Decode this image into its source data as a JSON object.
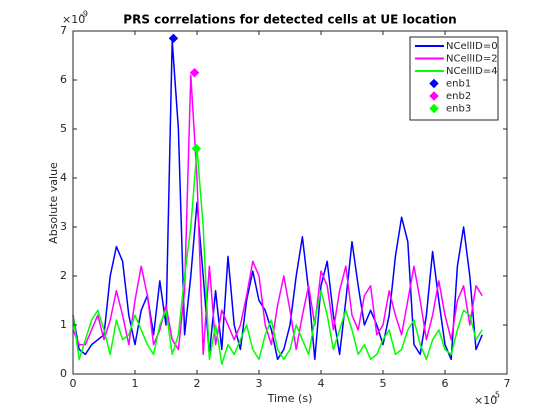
{
  "chart_data": {
    "type": "line",
    "title": "PRS correlations for detected cells at UE location",
    "xlabel": "Time (s)",
    "ylabel": "Absolute value",
    "x_multiplier": {
      "base": "×10",
      "exponent": "-5"
    },
    "y_multiplier": {
      "base": "×10",
      "exponent": "-9"
    },
    "xlim": [
      0,
      7
    ],
    "ylim": [
      0,
      7
    ],
    "xticks": [
      0,
      1,
      2,
      3,
      4,
      5,
      6,
      7
    ],
    "yticks": [
      0,
      1,
      2,
      3,
      4,
      5,
      6,
      7
    ],
    "grid": false,
    "legend": "upper right",
    "x": [
      0,
      0.1,
      0.2,
      0.3,
      0.4,
      0.5,
      0.6,
      0.7,
      0.8,
      0.9,
      1,
      1.1,
      1.2,
      1.3,
      1.4,
      1.5,
      1.6,
      1.7,
      1.8,
      1.9,
      2,
      2.1,
      2.2,
      2.3,
      2.4,
      2.5,
      2.6,
      2.7,
      2.8,
      2.9,
      3,
      3.1,
      3.2,
      3.3,
      3.4,
      3.5,
      3.6,
      3.7,
      3.8,
      3.9,
      4,
      4.1,
      4.2,
      4.3,
      4.4,
      4.5,
      4.6,
      4.7,
      4.8,
      4.9,
      5,
      5.1,
      5.2,
      5.3,
      5.4,
      5.5,
      5.6,
      5.7,
      5.8,
      5.9,
      6,
      6.1,
      6.2,
      6.3,
      6.4,
      6.5,
      6.6
    ],
    "series": [
      {
        "name": "NCellID=0",
        "color": "#0000ff",
        "values": [
          1.2,
          0.5,
          0.4,
          0.6,
          0.7,
          0.8,
          2.0,
          2.6,
          2.3,
          1.2,
          0.6,
          1.3,
          1.6,
          0.8,
          1.9,
          1.0,
          6.8,
          5.0,
          0.8,
          2.0,
          3.5,
          2.0,
          0.4,
          1.7,
          0.5,
          2.4,
          1.0,
          0.5,
          1.5,
          2.1,
          1.5,
          1.3,
          0.9,
          0.3,
          0.5,
          1.0,
          2.0,
          2.8,
          1.7,
          0.3,
          1.8,
          2.3,
          1.2,
          0.4,
          1.5,
          2.7,
          1.8,
          1.0,
          1.3,
          1.0,
          0.6,
          1.2,
          2.4,
          3.2,
          2.7,
          0.6,
          0.4,
          1.2,
          2.5,
          1.5,
          0.6,
          0.3,
          2.2,
          3.0,
          2.0,
          0.5,
          0.8
        ]
      },
      {
        "name": "NCellID=2",
        "color": "#ff00ff",
        "values": [
          0.9,
          0.6,
          0.6,
          0.9,
          1.2,
          0.7,
          1.1,
          1.7,
          1.2,
          0.6,
          1.5,
          2.2,
          1.6,
          0.6,
          0.9,
          1.4,
          0.7,
          0.5,
          1.7,
          6.1,
          4.0,
          0.4,
          2.2,
          0.6,
          1.3,
          1.0,
          0.7,
          1.0,
          1.6,
          2.3,
          2.0,
          1.0,
          0.6,
          1.4,
          2.0,
          1.3,
          0.5,
          1.2,
          1.8,
          1.0,
          2.1,
          1.8,
          0.9,
          1.7,
          2.2,
          1.2,
          0.9,
          1.6,
          1.8,
          0.8,
          1.0,
          1.7,
          1.2,
          0.8,
          1.5,
          2.2,
          1.5,
          0.7,
          1.2,
          1.9,
          1.2,
          0.7,
          1.5,
          1.8,
          1.0,
          1.8,
          1.6
        ]
      },
      {
        "name": "NCellID=4",
        "color": "#00ff00",
        "values": [
          1.2,
          0.3,
          0.7,
          1.1,
          1.3,
          0.9,
          0.4,
          1.1,
          0.7,
          0.8,
          1.2,
          0.9,
          0.6,
          0.4,
          1.0,
          1.3,
          0.4,
          0.8,
          2.0,
          3.0,
          4.6,
          3.0,
          0.3,
          1.0,
          0.2,
          0.6,
          0.4,
          0.7,
          1.0,
          0.5,
          0.3,
          0.8,
          1.1,
          0.5,
          0.3,
          0.5,
          1.0,
          0.7,
          0.4,
          1.1,
          1.7,
          1.2,
          0.5,
          0.9,
          1.3,
          0.9,
          0.4,
          0.6,
          0.3,
          0.4,
          0.7,
          0.9,
          0.4,
          0.5,
          0.9,
          1.1,
          0.6,
          0.3,
          0.7,
          0.9,
          0.5,
          0.4,
          0.9,
          1.3,
          1.2,
          0.7,
          0.9
        ]
      },
      {
        "name": "enb1",
        "color": "#0000ff",
        "marker": "diamond",
        "x": [
          1.62
        ],
        "values": [
          6.85
        ]
      },
      {
        "name": "enb2",
        "color": "#ff00ff",
        "marker": "diamond",
        "x": [
          1.96
        ],
        "values": [
          6.15
        ]
      },
      {
        "name": "enb3",
        "color": "#00ff00",
        "marker": "diamond",
        "x": [
          1.99
        ],
        "values": [
          4.6
        ]
      }
    ]
  }
}
